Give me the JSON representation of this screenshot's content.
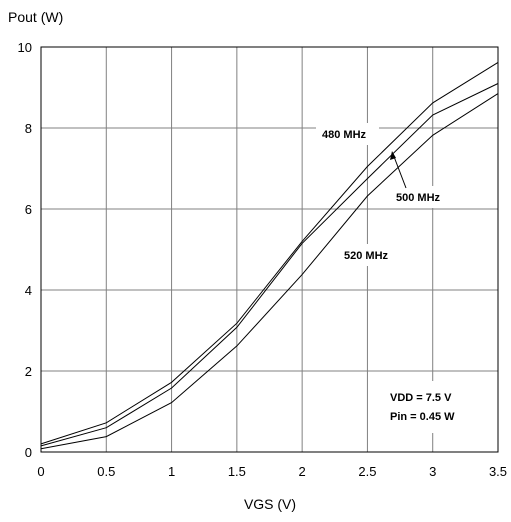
{
  "chart_data": {
    "type": "line",
    "xlabel": "VGS (V)",
    "ylabel": "Pout (W)",
    "xlim": [
      0,
      3.5
    ],
    "ylim": [
      0,
      10
    ],
    "x_ticks": [
      "0",
      "0.5",
      "1",
      "1.5",
      "2",
      "2.5",
      "3",
      "3.5"
    ],
    "y_ticks": [
      "0",
      "2",
      "4",
      "6",
      "8",
      "10"
    ],
    "grid": true,
    "x": [
      0,
      0.5,
      1,
      1.5,
      2,
      2.5,
      3,
      3.5
    ],
    "series": [
      {
        "name": "480 MHz",
        "values": [
          0.2,
          0.72,
          1.72,
          3.18,
          5.2,
          7.05,
          8.62,
          9.62
        ]
      },
      {
        "name": "500 MHz",
        "values": [
          0.15,
          0.6,
          1.58,
          3.08,
          5.15,
          6.75,
          8.32,
          9.1
        ]
      },
      {
        "name": "520 MHz",
        "values": [
          0.08,
          0.38,
          1.22,
          2.62,
          4.38,
          6.32,
          7.82,
          8.85
        ]
      }
    ],
    "annotations": [
      "VDD = 7.5 V",
      "Pin = 0.45 W"
    ]
  }
}
